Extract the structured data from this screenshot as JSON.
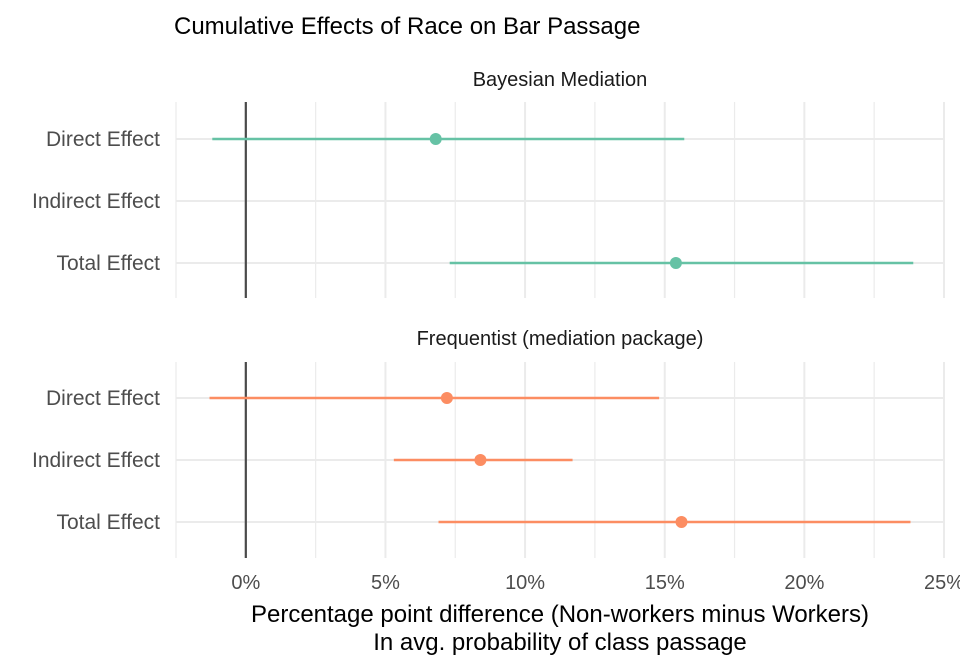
{
  "chart_data": {
    "type": "forest",
    "title": "Cumulative Effects of Race on Bar Passage",
    "xlabel_line1": "Percentage point difference (Non-workers minus Workers)",
    "xlabel_line2": "In avg. probability of class passage",
    "x_ticks": [
      0,
      5,
      10,
      15,
      20,
      25
    ],
    "x_tick_labels": [
      "0%",
      "5%",
      "10%",
      "15%",
      "20%",
      "25%"
    ],
    "xlim": [
      -2.5,
      25
    ],
    "reference_line": 0,
    "categories": [
      "Direct Effect",
      "Indirect Effect",
      "Total Effect"
    ],
    "grid": true,
    "panels": [
      {
        "name": "Bayesian Mediation",
        "color": "#66c2a5",
        "estimates": [
          {
            "label": "Direct Effect",
            "estimate": 6.8,
            "lower": -1.2,
            "upper": 15.7
          },
          {
            "label": "Total Effect",
            "estimate": 15.4,
            "lower": 7.3,
            "upper": 23.9
          }
        ]
      },
      {
        "name": "Frequentist (mediation package)",
        "color": "#fc8d62",
        "estimates": [
          {
            "label": "Direct Effect",
            "estimate": 7.2,
            "lower": -1.3,
            "upper": 14.8
          },
          {
            "label": "Indirect Effect",
            "estimate": 8.4,
            "lower": 5.3,
            "upper": 11.7
          },
          {
            "label": "Total Effect",
            "estimate": 15.6,
            "lower": 6.9,
            "upper": 23.8
          }
        ]
      }
    ]
  }
}
